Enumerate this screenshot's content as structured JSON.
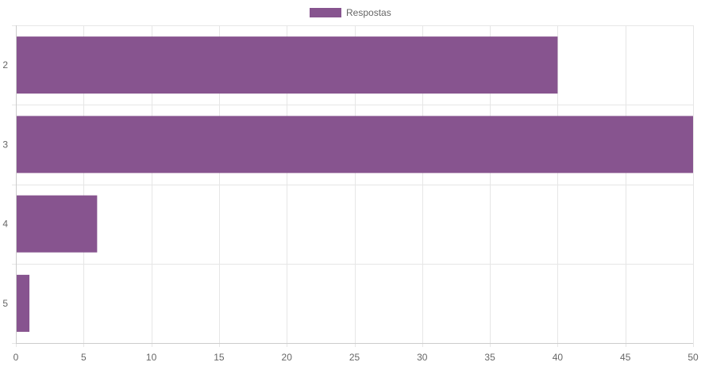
{
  "chart_data": {
    "type": "bar",
    "orientation": "horizontal",
    "categories": [
      "2",
      "3",
      "4",
      "5"
    ],
    "series": [
      {
        "name": "Respostas",
        "values": [
          40,
          50,
          6,
          1
        ],
        "color": "#87548f"
      }
    ],
    "xlim": [
      0,
      50
    ],
    "x_ticks": [
      0,
      5,
      10,
      15,
      20,
      25,
      30,
      35,
      40,
      45,
      50
    ],
    "grid": true,
    "legend": "top-center",
    "grid_color": "#e6e6e6",
    "axis_color": "#cccccc",
    "tick_text_color": "#666666"
  }
}
